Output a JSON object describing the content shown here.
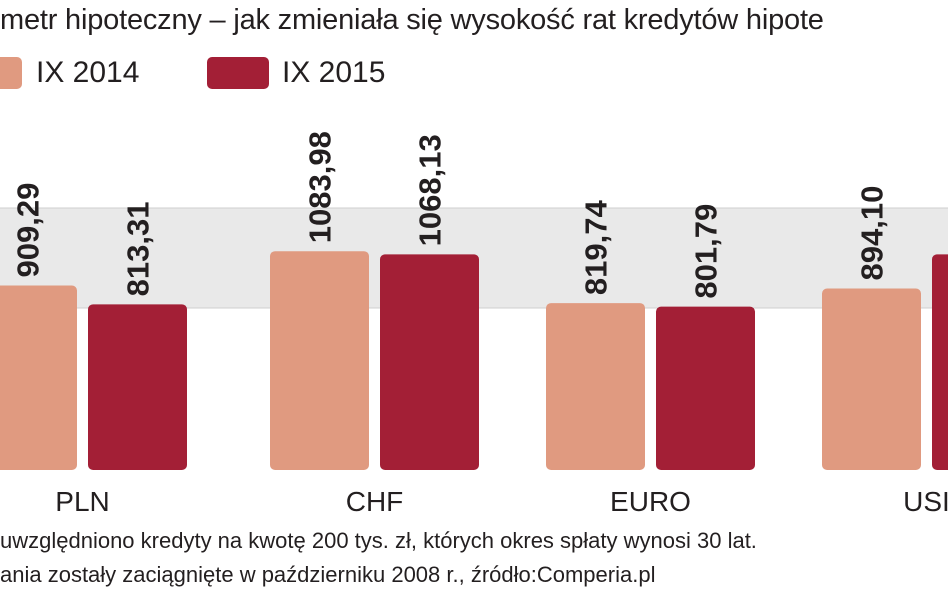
{
  "title": "metr hipoteczny – jak zmieniała się wysokość rat kredytów hipote",
  "legend": [
    {
      "label": "IX 2014",
      "color": "#e09a80"
    },
    {
      "label": "IX 2015",
      "color": "#a31f36"
    }
  ],
  "chart_data": {
    "type": "bar",
    "categories": [
      "PLN",
      "CHF",
      "EURO",
      "USI"
    ],
    "series": [
      {
        "name": "IX 2014",
        "values": [
          909.29,
          1083.98,
          819.74,
          894.1
        ],
        "labels": [
          "909,29",
          "1083,98",
          "819,74",
          "894,10"
        ]
      },
      {
        "name": "IX 2015",
        "values": [
          813.31,
          1068.13,
          801.79,
          1068.13
        ],
        "labels": [
          "813,31",
          "1068,13",
          "801,79",
          ""
        ]
      }
    ],
    "grid": true,
    "legend_position": "top-left"
  },
  "notes": [
    "uwzględniono kredyty na kwotę 200 tys. zł, których okres spłaty wynosi 30 lat.",
    "ania zostały zaciągnięte w październiku 2008 r., źródło:Comperia.pl"
  ]
}
